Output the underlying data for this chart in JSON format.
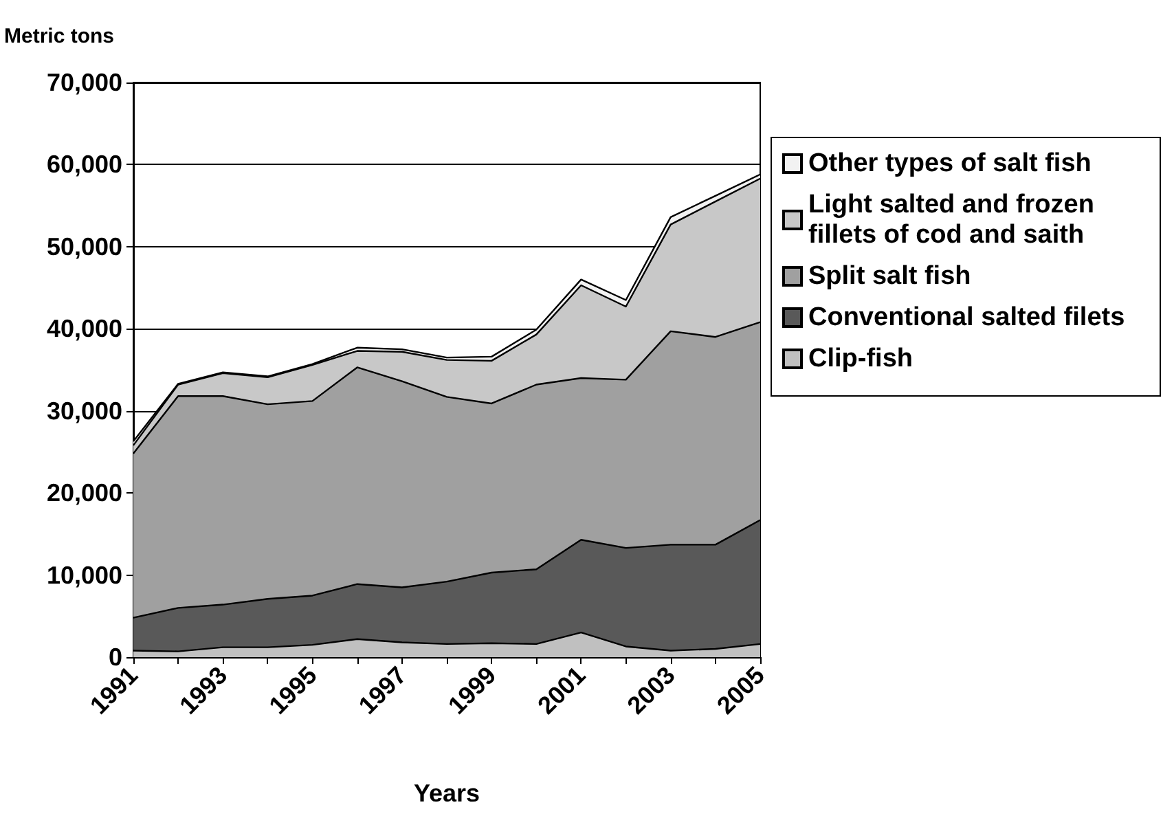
{
  "chart_data": {
    "type": "area",
    "stacked": true,
    "xlabel": "Years",
    "ylabel": "Metric tons",
    "categories": [
      "1991",
      null,
      "1993",
      null,
      "1995",
      null,
      "1997",
      null,
      "1999",
      null,
      "2001",
      null,
      "2003",
      null,
      "2005"
    ],
    "series": [
      {
        "name": "Clip-fish",
        "color": "#c0c0c0",
        "values": [
          800,
          700,
          1200,
          1200,
          1500,
          2200,
          1800,
          1600,
          1700,
          1600,
          3000,
          1300,
          800,
          1000,
          1600
        ]
      },
      {
        "name": "Conventional salted filets",
        "color": "#595959",
        "values": [
          4000,
          5300,
          5200,
          5900,
          6000,
          6700,
          6700,
          7600,
          8600,
          9100,
          11300,
          12000,
          12900,
          12700,
          15100
        ]
      },
      {
        "name": "Split salt fish",
        "color": "#a0a0a0",
        "values": [
          20000,
          25800,
          25400,
          23700,
          23700,
          26400,
          25100,
          22500,
          20600,
          22500,
          19700,
          20500,
          26000,
          25300,
          24100
        ]
      },
      {
        "name": "Light salted and frozen fillets of cod and saith",
        "color": "#c8c8c8",
        "values": [
          1000,
          1400,
          2800,
          3300,
          4400,
          2000,
          3600,
          4500,
          5200,
          6100,
          11300,
          8900,
          13000,
          16500,
          17500
        ]
      },
      {
        "name": "Other types of salt fish",
        "color": "#f2f2f2",
        "values": [
          500,
          100,
          100,
          100,
          100,
          400,
          300,
          300,
          500,
          600,
          700,
          800,
          900,
          700,
          500
        ]
      }
    ],
    "ylim": [
      0,
      70000
    ],
    "yticks": [
      {
        "value": 0,
        "label": "0"
      },
      {
        "value": 10000,
        "label": "10,000"
      },
      {
        "value": 20000,
        "label": "20,000"
      },
      {
        "value": 30000,
        "label": "30,000"
      },
      {
        "value": 40000,
        "label": "40,000"
      },
      {
        "value": 50000,
        "label": "50,000"
      },
      {
        "value": 60000,
        "label": "60,000"
      },
      {
        "value": 70000,
        "label": "70,000"
      }
    ],
    "grid": "y",
    "legend": "right"
  }
}
